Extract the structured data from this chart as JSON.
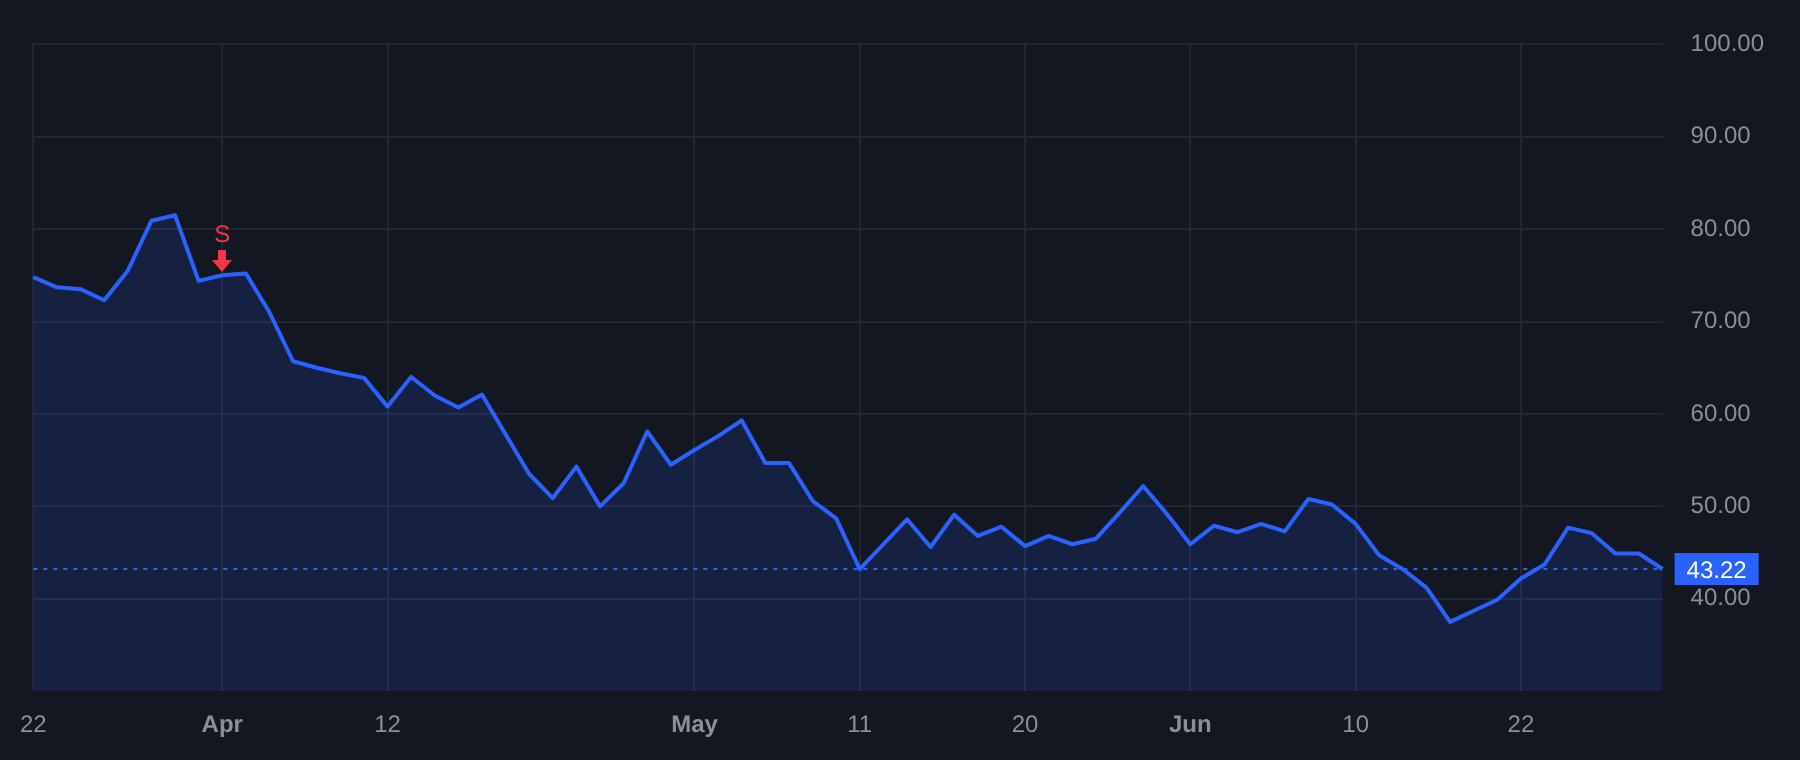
{
  "chart_data": {
    "type": "area",
    "categories": [
      "22",
      null,
      null,
      null,
      null,
      null,
      null,
      null,
      "Apr",
      null,
      null,
      null,
      null,
      null,
      null,
      "12",
      null,
      null,
      null,
      null,
      null,
      null,
      null,
      null,
      null,
      null,
      null,
      null,
      "May",
      null,
      null,
      null,
      null,
      null,
      null,
      "11",
      null,
      null,
      null,
      null,
      null,
      null,
      "20",
      null,
      null,
      null,
      null,
      null,
      null,
      "Jun",
      null,
      null,
      null,
      null,
      null,
      null,
      "10",
      null,
      null,
      null,
      null,
      null,
      null,
      "22",
      null,
      null,
      null,
      null,
      null,
      null
    ],
    "series": [
      {
        "color": "#2962ff",
        "values": [
          74.8,
          73.7,
          73.5,
          72.3,
          75.5,
          80.9,
          81.5,
          74.4,
          75.0,
          75.2,
          71.0,
          65.7,
          65.0,
          64.4,
          63.9,
          60.8,
          64.0,
          62.0,
          60.7,
          62.1,
          57.8,
          53.5,
          50.9,
          54.3,
          50.0,
          52.5,
          58.1,
          54.5,
          56.1,
          57.6,
          59.3,
          54.7,
          54.7,
          50.6,
          48.7,
          43.2,
          45.9,
          48.6,
          45.6,
          49.1,
          46.8,
          47.8,
          45.7,
          46.8,
          45.9,
          46.5,
          49.3,
          52.2,
          49.2,
          45.9,
          47.9,
          47.2,
          48.1,
          47.3,
          50.8,
          50.2,
          48.1,
          44.7,
          43.2,
          41.2,
          37.5,
          38.7,
          39.9,
          42.2,
          43.7,
          47.7,
          47.1,
          44.9,
          44.9,
          43.22
        ]
      }
    ],
    "ylim": [
      30,
      100.2
    ],
    "yticks": [
      {
        "value": 40,
        "label": "40.00"
      },
      {
        "value": 50,
        "label": "50.00"
      },
      {
        "value": 60,
        "label": "60.00"
      },
      {
        "value": 70,
        "label": "70.00"
      },
      {
        "value": 80,
        "label": "80.00"
      },
      {
        "value": 90,
        "label": "90.00"
      },
      {
        "value": 100,
        "label": "100.00"
      }
    ],
    "ref_lines": [
      {
        "axis": "y",
        "value": 43.22,
        "label": "43.22",
        "color": "#2962ff",
        "line_style": "dotted"
      }
    ],
    "annotations": [
      {
        "text": "S",
        "x": "Apr",
        "y": 75.0
      }
    ],
    "grid": true,
    "legend": false,
    "marker": "none",
    "line_style": "solid"
  }
}
